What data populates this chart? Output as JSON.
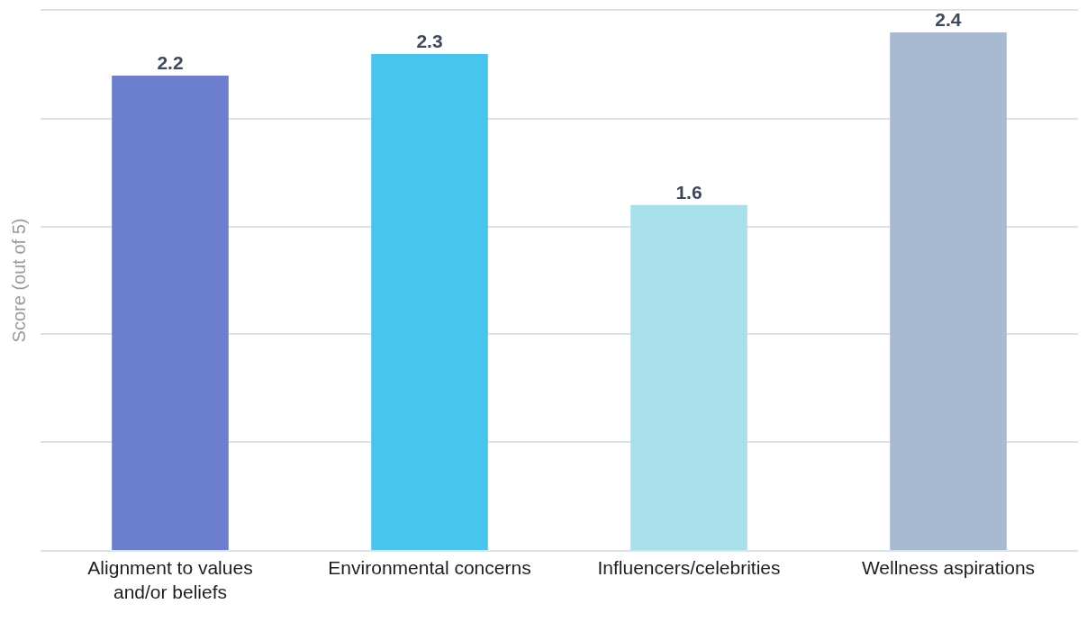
{
  "chart_data": {
    "type": "bar",
    "ylabel": "Score (out of 5)",
    "categories": [
      "Alignment to values\nand/or beliefs",
      "Environmental concerns",
      "Influencers/celebrities",
      "Wellness aspirations"
    ],
    "values": [
      2.2,
      2.3,
      1.6,
      2.4
    ],
    "colors": [
      "#6b7fce",
      "#48c5ef",
      "#a7e0eb",
      "#a8b9d2"
    ],
    "ylim": [
      0,
      2.5
    ],
    "yticks": [
      {
        "value": 0,
        "label": null
      },
      {
        "value": 0.5,
        "label": null
      },
      {
        "value": 1,
        "label": null
      },
      {
        "value": 1.5,
        "label": null
      },
      {
        "value": 2,
        "label": null
      },
      {
        "value": 2.5,
        "label": null
      }
    ],
    "tick_labels": "x",
    "grid": "y",
    "data_labels": true
  }
}
